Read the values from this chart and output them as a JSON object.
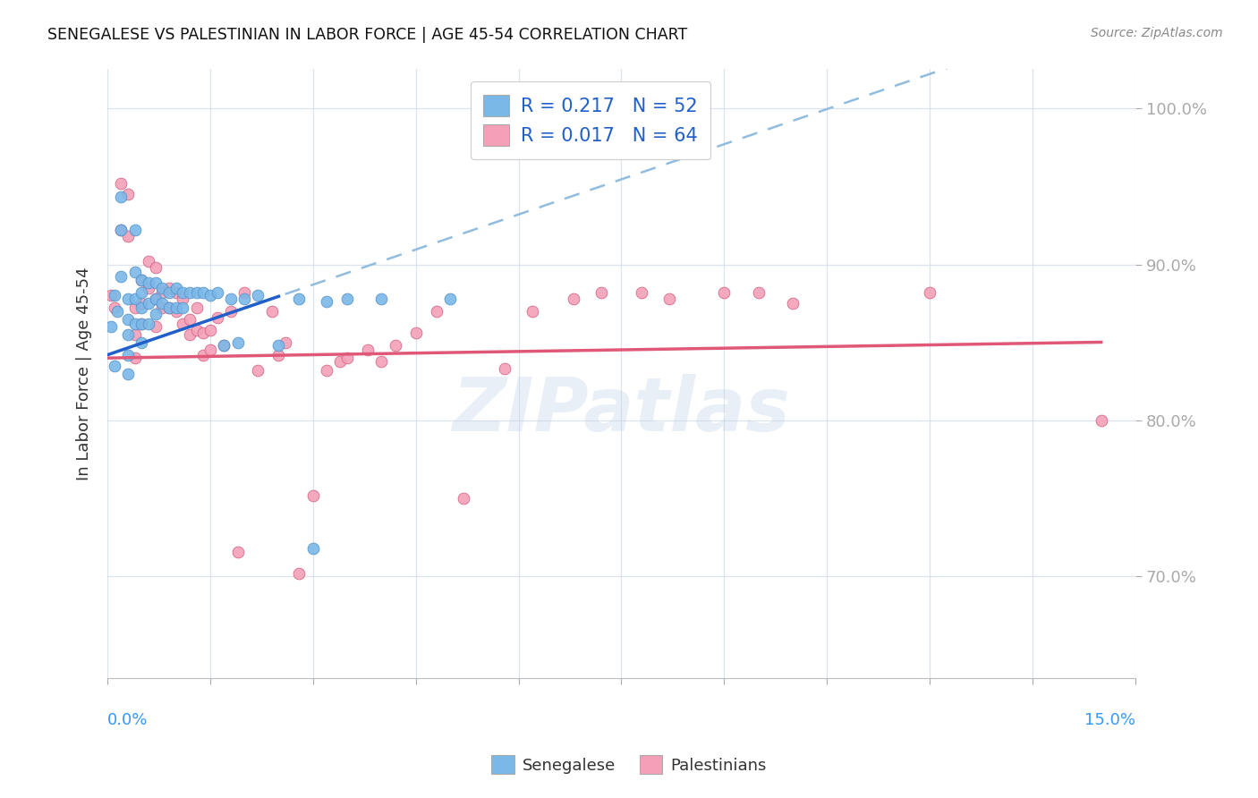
{
  "title": "SENEGALESE VS PALESTINIAN IN LABOR FORCE | AGE 45-54 CORRELATION CHART",
  "source": "Source: ZipAtlas.com",
  "ylabel": "In Labor Force | Age 45-54",
  "xlim": [
    0.0,
    0.15
  ],
  "ylim": [
    0.635,
    1.025
  ],
  "ytick_vals": [
    0.7,
    0.8,
    0.9,
    1.0
  ],
  "ytick_labels": [
    "70.0%",
    "80.0%",
    "90.0%",
    "100.0%"
  ],
  "xtick_positions": [
    0.0,
    0.015,
    0.03,
    0.045,
    0.06,
    0.075,
    0.09,
    0.105,
    0.12,
    0.135,
    0.15
  ],
  "senegalese_color": "#7ab8e8",
  "senegalese_edge": "#5090c8",
  "palestinian_color": "#f4a0b8",
  "palestinian_edge": "#d06080",
  "trend_sen_color": "#2060c8",
  "trend_pal_color": "#e05878",
  "dashed_color": "#90bce0",
  "R_sen": 0.217,
  "N_sen": 52,
  "R_pal": 0.017,
  "N_pal": 64,
  "watermark": "ZIPatlas",
  "sen_x": [
    0.0005,
    0.001,
    0.001,
    0.0015,
    0.002,
    0.002,
    0.002,
    0.003,
    0.003,
    0.003,
    0.003,
    0.003,
    0.004,
    0.004,
    0.004,
    0.004,
    0.005,
    0.005,
    0.005,
    0.005,
    0.005,
    0.006,
    0.006,
    0.006,
    0.007,
    0.007,
    0.007,
    0.008,
    0.008,
    0.009,
    0.009,
    0.01,
    0.01,
    0.011,
    0.011,
    0.012,
    0.013,
    0.014,
    0.015,
    0.016,
    0.017,
    0.018,
    0.019,
    0.02,
    0.022,
    0.025,
    0.028,
    0.03,
    0.032,
    0.035,
    0.04,
    0.05
  ],
  "sen_y": [
    0.86,
    0.88,
    0.835,
    0.87,
    0.943,
    0.922,
    0.892,
    0.878,
    0.865,
    0.855,
    0.842,
    0.83,
    0.922,
    0.895,
    0.878,
    0.862,
    0.89,
    0.882,
    0.872,
    0.862,
    0.85,
    0.888,
    0.875,
    0.862,
    0.888,
    0.878,
    0.868,
    0.885,
    0.875,
    0.882,
    0.872,
    0.885,
    0.872,
    0.882,
    0.872,
    0.882,
    0.882,
    0.882,
    0.88,
    0.882,
    0.848,
    0.878,
    0.85,
    0.878,
    0.88,
    0.848,
    0.878,
    0.718,
    0.876,
    0.878,
    0.878,
    0.878
  ],
  "pal_x": [
    0.0005,
    0.001,
    0.002,
    0.002,
    0.003,
    0.003,
    0.004,
    0.004,
    0.004,
    0.005,
    0.005,
    0.005,
    0.006,
    0.006,
    0.007,
    0.007,
    0.007,
    0.008,
    0.008,
    0.009,
    0.009,
    0.01,
    0.01,
    0.011,
    0.011,
    0.012,
    0.012,
    0.013,
    0.013,
    0.014,
    0.014,
    0.015,
    0.015,
    0.016,
    0.017,
    0.018,
    0.019,
    0.02,
    0.022,
    0.024,
    0.025,
    0.026,
    0.028,
    0.03,
    0.032,
    0.034,
    0.035,
    0.038,
    0.04,
    0.042,
    0.045,
    0.048,
    0.052,
    0.058,
    0.062,
    0.068,
    0.072,
    0.078,
    0.082,
    0.09,
    0.095,
    0.1,
    0.12,
    0.145
  ],
  "pal_y": [
    0.88,
    0.872,
    0.952,
    0.922,
    0.945,
    0.918,
    0.872,
    0.855,
    0.84,
    0.89,
    0.875,
    0.862,
    0.902,
    0.885,
    0.898,
    0.878,
    0.86,
    0.882,
    0.872,
    0.885,
    0.872,
    0.882,
    0.87,
    0.878,
    0.862,
    0.865,
    0.855,
    0.872,
    0.858,
    0.856,
    0.842,
    0.858,
    0.845,
    0.866,
    0.848,
    0.87,
    0.716,
    0.882,
    0.832,
    0.87,
    0.842,
    0.85,
    0.702,
    0.752,
    0.832,
    0.838,
    0.84,
    0.845,
    0.838,
    0.848,
    0.856,
    0.87,
    0.75,
    0.833,
    0.87,
    0.878,
    0.882,
    0.882,
    0.878,
    0.882,
    0.882,
    0.875,
    0.882,
    0.8
  ]
}
